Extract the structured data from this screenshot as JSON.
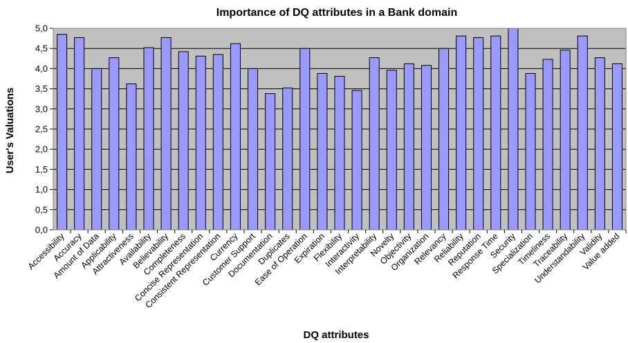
{
  "chart_data": {
    "type": "bar",
    "title": "Importance of DQ attributes in a Bank domain",
    "xlabel": "DQ attributes",
    "ylabel": "User's Valuations",
    "ylim": [
      0,
      5
    ],
    "yticks": [
      "0,0",
      "0,5",
      "1,0",
      "1,5",
      "2,0",
      "2,5",
      "3,0",
      "3,5",
      "4,0",
      "4,5",
      "5,0"
    ],
    "grid": true,
    "legend": "none",
    "categories": [
      "Accessibility",
      "Accuracy",
      "Amount of  Data",
      "Applicability",
      "Attractiveness",
      "Availability",
      "Believability",
      "Completeness",
      "Concise Representation",
      "Consistent Representation",
      "Currency",
      "Customer Support",
      "Documentation",
      "Duplicates",
      "Ease of Operation",
      "Expiration",
      "Flexibility",
      "Interactivity",
      "Interpretability",
      "Novelty",
      "Objectivity",
      "Organization",
      "Relevancy",
      "Reliability",
      "Reputation",
      "Response Time",
      "Security",
      "Specialization",
      "Timeliness",
      "Traceability",
      "Understandability",
      "Validity",
      "Value added"
    ],
    "values": [
      4.85,
      4.77,
      4.0,
      4.27,
      3.62,
      4.52,
      4.77,
      4.42,
      4.31,
      4.35,
      4.62,
      4.0,
      3.38,
      3.52,
      4.5,
      3.88,
      3.81,
      3.46,
      4.27,
      3.96,
      4.12,
      4.08,
      4.5,
      4.81,
      4.77,
      4.81,
      5.0,
      3.88,
      4.23,
      4.46,
      4.81,
      4.27,
      4.12
    ],
    "colors": {
      "bar_fill": "#9999ff",
      "bar_stroke": "#000000",
      "plot_background": "#c0c0c0",
      "gridline": "#000000"
    }
  }
}
